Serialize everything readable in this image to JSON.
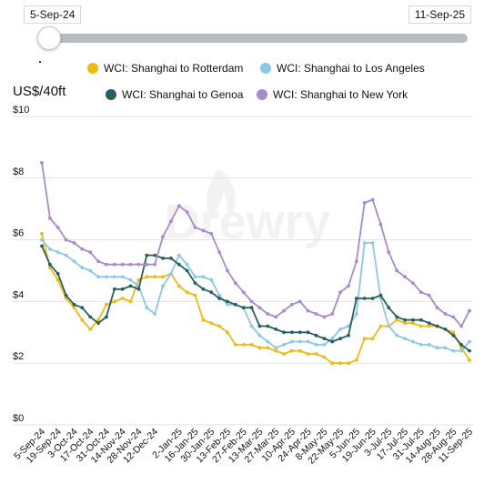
{
  "range_selector": {
    "start_label": "5-Sep-24",
    "end_label": "11-Sep-25"
  },
  "watermark": "Drewry",
  "chart_data": {
    "type": "line",
    "ylabel": "US$/40ft",
    "ylim": [
      0,
      10
    ],
    "y_ticks": [
      "$0",
      "$2",
      "$4",
      "$6",
      "$8",
      "$10"
    ],
    "y_tick_values": [
      0,
      2,
      4,
      6,
      8,
      10
    ],
    "grid": "horizontal",
    "legend": "top",
    "x": [
      "5-Sep-24",
      "12-Sep-24",
      "19-Sep-24",
      "26-Sep-24",
      "3-Oct-24",
      "10-Oct-24",
      "17-Oct-24",
      "24-Oct-24",
      "31-Oct-24",
      "7-Nov-24",
      "14-Nov-24",
      "21-Nov-24",
      "28-Nov-24",
      "5-Dec-24",
      "12-Dec-24",
      "19-Dec-24",
      "26-Dec-24",
      "2-Jan-25",
      "9-Jan-25",
      "16-Jan-25",
      "23-Jan-25",
      "30-Jan-25",
      "6-Feb-25",
      "13-Feb-25",
      "20-Feb-25",
      "27-Feb-25",
      "6-Mar-25",
      "13-Mar-25",
      "20-Mar-25",
      "27-Mar-25",
      "3-Apr-25",
      "10-Apr-25",
      "17-Apr-25",
      "24-Apr-25",
      "1-May-25",
      "8-May-25",
      "15-May-25",
      "22-May-25",
      "29-May-25",
      "5-Jun-25",
      "12-Jun-25",
      "19-Jun-25",
      "26-Jun-25",
      "3-Jul-25",
      "10-Jul-25",
      "17-Jul-25",
      "24-Jul-25",
      "31-Jul-25",
      "7-Aug-25",
      "14-Aug-25",
      "21-Aug-25",
      "28-Aug-25",
      "4-Sep-25",
      "11-Sep-25"
    ],
    "x_tick_labels": [
      "5-Sep-24",
      "19-Sep-24",
      "3-Oct-24",
      "17-Oct-24",
      "31-Oct-24",
      "14-Nov-24",
      "28-Nov-24",
      "12-Dec-24",
      "2-Jan-25",
      "16-Jan-25",
      "30-Jan-25",
      "13-Feb-25",
      "27-Feb-25",
      "13-Mar-25",
      "27-Mar-25",
      "10-Apr-25",
      "24-Apr-25",
      "8-May-25",
      "22-May-25",
      "5-Jun-25",
      "19-Jun-25",
      "3-Jul-25",
      "17-Jul-25",
      "31-Jul-25",
      "14-Aug-25",
      "28-Aug-25",
      "11-Sep-25"
    ],
    "series": [
      {
        "name": "WCI: Shanghai to Rotterdam",
        "color": "#f2b90f",
        "values": [
          6.2,
          5.1,
          4.7,
          4.1,
          3.8,
          3.4,
          3.1,
          3.4,
          3.9,
          4.0,
          4.1,
          4.0,
          4.7,
          4.8,
          4.8,
          4.8,
          4.9,
          4.5,
          4.3,
          4.2,
          3.4,
          3.3,
          3.2,
          3.0,
          2.6,
          2.6,
          2.6,
          2.5,
          2.5,
          2.4,
          2.3,
          2.4,
          2.4,
          2.3,
          2.3,
          2.2,
          2.0,
          2.0,
          2.0,
          2.1,
          2.8,
          2.8,
          3.2,
          3.2,
          3.4,
          3.3,
          3.3,
          3.2,
          3.2,
          3.2,
          3.1,
          3.0,
          2.5,
          2.1
        ]
      },
      {
        "name": "WCI: Shanghai to Los Angeles",
        "color": "#8cc8ea",
        "values": [
          6.0,
          5.7,
          5.6,
          5.5,
          5.3,
          5.1,
          5.0,
          4.8,
          4.8,
          4.8,
          4.8,
          4.7,
          4.5,
          3.8,
          3.6,
          4.5,
          4.9,
          5.5,
          5.2,
          4.8,
          4.8,
          4.7,
          4.2,
          3.9,
          3.9,
          3.8,
          3.2,
          2.9,
          2.7,
          2.5,
          2.6,
          2.7,
          2.7,
          2.7,
          2.6,
          2.6,
          2.8,
          3.1,
          3.2,
          3.6,
          5.9,
          5.9,
          4.1,
          3.2,
          2.9,
          2.8,
          2.7,
          2.6,
          2.6,
          2.5,
          2.5,
          2.4,
          2.4,
          2.7
        ]
      },
      {
        "name": "WCI: Shanghai to Genoa",
        "color": "#26605f",
        "values": [
          5.8,
          5.2,
          4.9,
          4.2,
          3.9,
          3.8,
          3.5,
          3.3,
          3.5,
          4.4,
          4.4,
          4.5,
          4.4,
          5.5,
          5.5,
          5.4,
          5.4,
          5.2,
          5.0,
          4.6,
          4.4,
          4.3,
          4.1,
          4.0,
          3.9,
          3.8,
          3.8,
          3.2,
          3.2,
          3.1,
          3.0,
          3.0,
          3.0,
          3.0,
          2.9,
          2.8,
          2.7,
          2.8,
          2.9,
          4.1,
          4.1,
          4.1,
          4.2,
          3.8,
          3.5,
          3.4,
          3.4,
          3.4,
          3.3,
          3.2,
          3.1,
          2.9,
          2.6,
          2.4
        ]
      },
      {
        "name": "WCI: Shanghai to New York",
        "color": "#a88ad1",
        "values": [
          8.5,
          6.7,
          6.4,
          6.0,
          5.9,
          5.7,
          5.6,
          5.3,
          5.2,
          5.2,
          5.2,
          5.2,
          5.2,
          5.2,
          5.2,
          6.1,
          6.6,
          7.1,
          6.9,
          6.4,
          6.3,
          6.2,
          5.6,
          5.0,
          4.6,
          4.3,
          4.0,
          3.8,
          3.6,
          3.5,
          3.7,
          3.9,
          4.0,
          3.7,
          3.6,
          3.5,
          3.6,
          4.3,
          4.5,
          5.3,
          7.2,
          7.3,
          6.5,
          5.6,
          5.0,
          4.8,
          4.6,
          4.3,
          4.2,
          3.8,
          3.6,
          3.5,
          3.2,
          3.7
        ]
      }
    ]
  }
}
